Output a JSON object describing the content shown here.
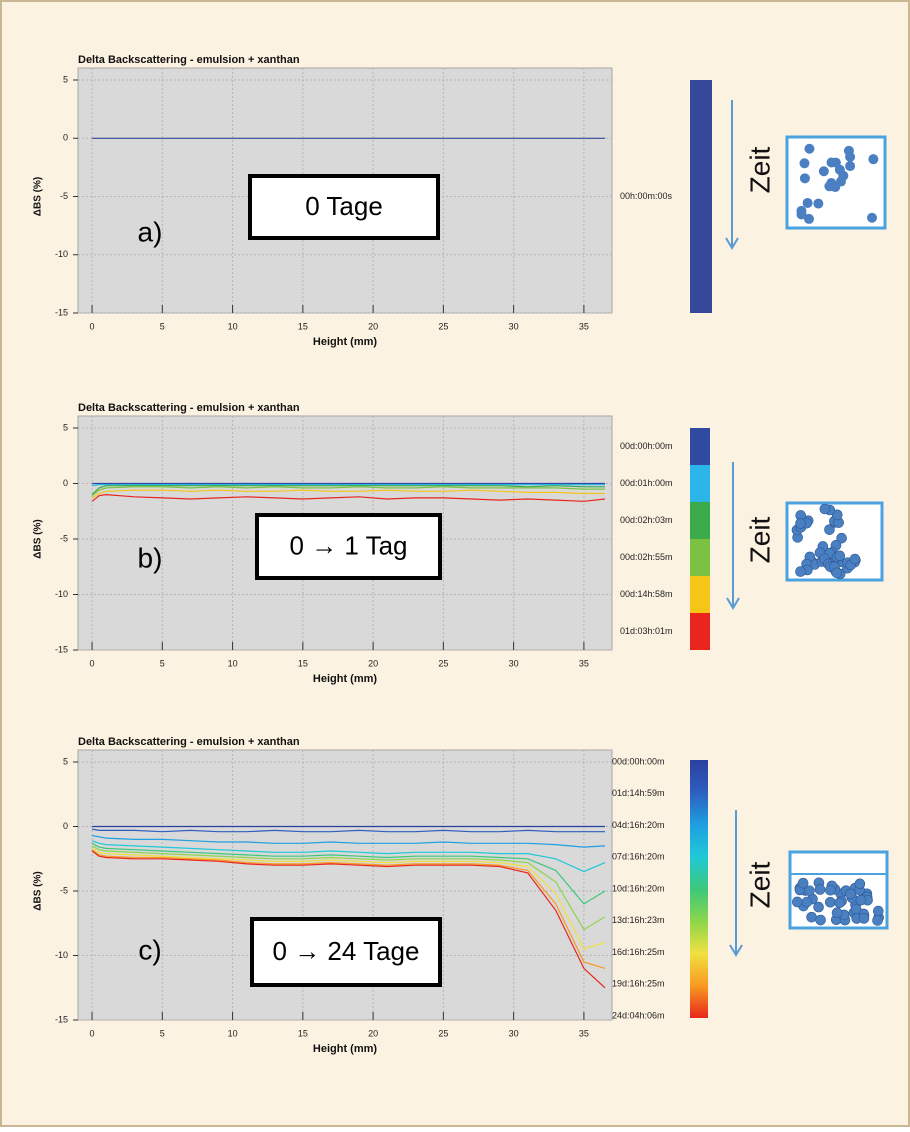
{
  "chart_data": [
    {
      "type": "line",
      "title": "Delta Backscattering - emulsion + xanthan",
      "panel_label": "a)",
      "annotation": "0 Tage",
      "arrow_label": "Zeit",
      "x_label": "Height (mm)",
      "y_label": "ΔBS (%)",
      "xlim": [
        -1,
        37
      ],
      "ylim": [
        -15,
        5
      ],
      "xticks": [
        0,
        5,
        10,
        15,
        20,
        25,
        30,
        35
      ],
      "yticks": [
        -15,
        -10,
        -5,
        0,
        5
      ],
      "grid": true,
      "legend_gradient": false,
      "x": [
        0,
        36.5
      ],
      "series": [
        {
          "name": "00h:00m:00s",
          "color": "#35489a",
          "values": [
            0,
            0
          ]
        }
      ]
    },
    {
      "type": "line",
      "title": "Delta Backscattering - emulsion + xanthan",
      "panel_label": "b)",
      "annotation": "0 → 1 Tag",
      "arrow_label": "Zeit",
      "x_label": "Height (mm)",
      "y_label": "ΔBS (%)",
      "xlim": [
        -1,
        37
      ],
      "ylim": [
        -15,
        5
      ],
      "xticks": [
        0,
        5,
        10,
        15,
        20,
        25,
        30,
        35
      ],
      "yticks": [
        -15,
        -10,
        -5,
        0,
        5
      ],
      "grid": true,
      "legend_gradient": false,
      "x": [
        0,
        0.5,
        1,
        3,
        5,
        7,
        9,
        11,
        13,
        15,
        17,
        19,
        21,
        23,
        25,
        27,
        29,
        31,
        33,
        35,
        36.5
      ],
      "series": [
        {
          "name": "00d:00h:00m",
          "color": "#2f4aa0",
          "values": [
            0,
            0,
            0,
            0,
            0,
            0,
            0,
            0,
            0,
            0,
            0,
            0,
            0,
            0,
            0,
            0,
            0,
            0,
            0,
            0,
            0
          ]
        },
        {
          "name": "00d:01h:00m",
          "color": "#2bb5e8",
          "values": [
            -0.2,
            -0.1,
            -0.1,
            -0.1,
            -0.1,
            -0.1,
            -0.1,
            -0.1,
            -0.1,
            -0.1,
            -0.1,
            -0.1,
            -0.1,
            -0.1,
            -0.1,
            -0.1,
            -0.1,
            -0.1,
            -0.1,
            -0.1,
            -0.1
          ]
        },
        {
          "name": "00d:02h:03m",
          "color": "#3aaa4a",
          "values": [
            -1.0,
            -0.4,
            -0.2,
            -0.2,
            -0.2,
            -0.2,
            -0.2,
            -0.2,
            -0.2,
            -0.2,
            -0.2,
            -0.2,
            -0.2,
            -0.2,
            -0.2,
            -0.2,
            -0.2,
            -0.3,
            -0.2,
            -0.3,
            -0.3
          ]
        },
        {
          "name": "00d:02h:55m",
          "color": "#7cc242",
          "values": [
            -1.1,
            -0.6,
            -0.4,
            -0.3,
            -0.3,
            -0.4,
            -0.3,
            -0.4,
            -0.3,
            -0.4,
            -0.4,
            -0.3,
            -0.4,
            -0.4,
            -0.3,
            -0.4,
            -0.4,
            -0.4,
            -0.4,
            -0.5,
            -0.5
          ]
        },
        {
          "name": "00d:14h:58m",
          "color": "#f5c518",
          "values": [
            -1.3,
            -0.9,
            -0.7,
            -0.6,
            -0.6,
            -0.7,
            -0.6,
            -0.7,
            -0.7,
            -0.6,
            -0.7,
            -0.7,
            -0.6,
            -0.7,
            -0.7,
            -0.6,
            -0.7,
            -0.8,
            -0.8,
            -0.9,
            -0.9
          ]
        },
        {
          "name": "01d:03h:01m",
          "color": "#e8261e",
          "values": [
            -1.6,
            -1.1,
            -1.0,
            -1.2,
            -1.3,
            -1.4,
            -1.3,
            -1.2,
            -1.3,
            -1.4,
            -1.3,
            -1.2,
            -1.4,
            -1.3,
            -1.3,
            -1.4,
            -1.5,
            -1.4,
            -1.5,
            -1.6,
            -1.4
          ]
        }
      ]
    },
    {
      "type": "line",
      "title": "Delta Backscattering - emulsion + xanthan",
      "panel_label": "c)",
      "annotation": "0 → 24 Tage",
      "arrow_label": "Zeit",
      "x_label": "Height (mm)",
      "y_label": "ΔBS (%)",
      "xlim": [
        -1,
        37
      ],
      "ylim": [
        -15,
        5
      ],
      "xticks": [
        0,
        5,
        10,
        15,
        20,
        25,
        30,
        35
      ],
      "yticks": [
        -15,
        -10,
        -5,
        0,
        5
      ],
      "grid": true,
      "legend_gradient": true,
      "x": [
        0,
        0.5,
        1,
        3,
        5,
        7,
        9,
        11,
        13,
        15,
        17,
        19,
        21,
        23,
        25,
        27,
        29,
        31,
        33,
        35,
        36.5
      ],
      "series": [
        {
          "name": "00d:00h:00m",
          "color": "#2b3f9e",
          "values": [
            0,
            0,
            0,
            0,
            0,
            0,
            0,
            0,
            0,
            0,
            0,
            0,
            0,
            0,
            0,
            0,
            0,
            0,
            0,
            0,
            0
          ]
        },
        {
          "name": "01d:14h:59m",
          "color": "#2e5fc0",
          "values": [
            -0.2,
            -0.3,
            -0.3,
            -0.3,
            -0.4,
            -0.3,
            -0.4,
            -0.4,
            -0.3,
            -0.4,
            -0.4,
            -0.3,
            -0.4,
            -0.4,
            -0.3,
            -0.4,
            -0.4,
            -0.3,
            -0.4,
            -0.4,
            -0.4
          ]
        },
        {
          "name": "04d:16h:20m",
          "color": "#1e9fe0",
          "values": [
            -0.7,
            -0.8,
            -0.9,
            -1.0,
            -1.0,
            -1.1,
            -1.2,
            -1.2,
            -1.3,
            -1.3,
            -1.2,
            -1.3,
            -1.3,
            -1.3,
            -1.2,
            -1.3,
            -1.3,
            -1.3,
            -1.4,
            -1.6,
            -1.5
          ]
        },
        {
          "name": "07d:16h:20m",
          "color": "#20c8d8",
          "values": [
            -1.1,
            -1.3,
            -1.4,
            -1.5,
            -1.6,
            -1.7,
            -1.8,
            -1.9,
            -2.0,
            -2.0,
            -1.9,
            -2.0,
            -2.1,
            -2.0,
            -2.0,
            -2.0,
            -2.1,
            -2.1,
            -2.5,
            -3.5,
            -2.8
          ]
        },
        {
          "name": "10d:16h:20m",
          "color": "#3cc87a",
          "values": [
            -1.3,
            -1.6,
            -1.7,
            -1.8,
            -1.9,
            -2.0,
            -2.1,
            -2.2,
            -2.3,
            -2.3,
            -2.2,
            -2.3,
            -2.4,
            -2.3,
            -2.3,
            -2.3,
            -2.4,
            -2.5,
            -3.4,
            -6,
            -5
          ]
        },
        {
          "name": "13d:16h:23m",
          "color": "#8cd64a",
          "values": [
            -1.5,
            -1.8,
            -1.9,
            -2.0,
            -2.1,
            -2.2,
            -2.3,
            -2.4,
            -2.5,
            -2.5,
            -2.4,
            -2.5,
            -2.6,
            -2.5,
            -2.5,
            -2.5,
            -2.6,
            -2.8,
            -4.3,
            -8,
            -7
          ]
        },
        {
          "name": "16d:16h:25m",
          "color": "#f0e040",
          "values": [
            -1.7,
            -2.0,
            -2.1,
            -2.2,
            -2.3,
            -2.4,
            -2.5,
            -2.6,
            -2.7,
            -2.7,
            -2.6,
            -2.7,
            -2.8,
            -2.7,
            -2.7,
            -2.7,
            -2.8,
            -3.1,
            -5.2,
            -9.5,
            -9
          ]
        },
        {
          "name": "19d:16h:25m",
          "color": "#f89a20",
          "values": [
            -1.8,
            -2.2,
            -2.3,
            -2.4,
            -2.4,
            -2.5,
            -2.6,
            -2.8,
            -2.9,
            -2.9,
            -2.8,
            -2.9,
            -3.0,
            -2.9,
            -2.9,
            -2.9,
            -3.0,
            -3.4,
            -6,
            -10.5,
            -11
          ]
        },
        {
          "name": "24d:04h:06m",
          "color": "#e8261e",
          "values": [
            -1.9,
            -2.3,
            -2.4,
            -2.5,
            -2.5,
            -2.6,
            -2.7,
            -2.9,
            -3.0,
            -3.0,
            -2.9,
            -3.0,
            -3.1,
            -3.0,
            -3.0,
            -3.0,
            -3.1,
            -3.6,
            -6.5,
            -11,
            -12.5
          ]
        }
      ]
    }
  ]
}
